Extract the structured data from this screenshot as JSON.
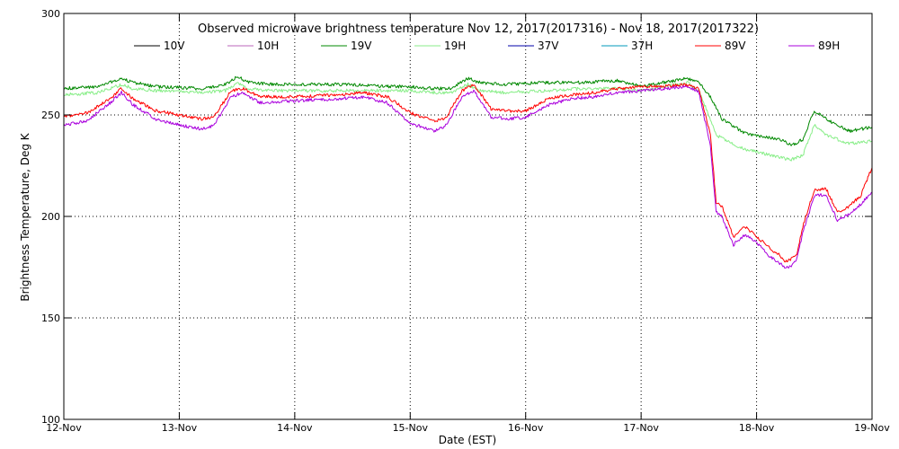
{
  "chart_data": {
    "type": "line",
    "title": "Observed microwave brightness temperature Nov 12, 2017(2017316) - Nov 18, 2017(2017322)",
    "xlabel": "Date (EST)",
    "ylabel": "Brightness Temperature, Deg K",
    "xlim": [
      0,
      7
    ],
    "ylim": [
      100,
      300
    ],
    "x_ticks": [
      0,
      1,
      2,
      3,
      4,
      5,
      6,
      7
    ],
    "x_tick_labels": [
      "12-Nov",
      "13-Nov",
      "14-Nov",
      "15-Nov",
      "16-Nov",
      "17-Nov",
      "18-Nov",
      "19-Nov"
    ],
    "y_ticks": [
      100,
      150,
      200,
      250,
      300
    ],
    "y_tick_labels": [
      "100",
      "150",
      "200",
      "250",
      "300"
    ],
    "grid": true,
    "legend_position": "top",
    "series": [
      {
        "name": "10V",
        "color": "#000000",
        "x": [],
        "values": []
      },
      {
        "name": "10H",
        "color": "#bb66bb",
        "x": [],
        "values": []
      },
      {
        "name": "19V",
        "color": "#008800",
        "x": [
          0,
          0.3,
          0.45,
          0.5,
          0.6,
          0.8,
          1.2,
          1.4,
          1.5,
          1.6,
          1.8,
          2.5,
          2.8,
          3.0,
          3.2,
          3.35,
          3.5,
          3.6,
          3.8,
          4.2,
          4.5,
          4.8,
          5.0,
          5.2,
          5.4,
          5.5,
          5.6,
          5.7,
          5.9,
          6.0,
          6.2,
          6.3,
          6.4,
          6.5,
          6.6,
          6.8,
          7.0
        ],
        "values": [
          263,
          264,
          267,
          268,
          266,
          264,
          263,
          265,
          269,
          266,
          265,
          265,
          264,
          264,
          263,
          263,
          268,
          266,
          265,
          266,
          266,
          267,
          264,
          266,
          268,
          266,
          259,
          248,
          241,
          240,
          238,
          235,
          238,
          252,
          248,
          242,
          244
        ]
      },
      {
        "name": "19H",
        "color": "#88ee88",
        "x": [
          0,
          0.3,
          0.45,
          0.5,
          0.6,
          0.8,
          1.2,
          1.4,
          1.5,
          1.6,
          1.8,
          2.5,
          2.8,
          3.0,
          3.2,
          3.35,
          3.5,
          3.6,
          3.8,
          4.2,
          4.5,
          4.8,
          5.0,
          5.2,
          5.4,
          5.5,
          5.55,
          5.65,
          5.9,
          6.0,
          6.2,
          6.3,
          6.4,
          6.5,
          6.6,
          6.8,
          7.0
        ],
        "values": [
          260,
          261,
          264,
          265,
          263,
          262,
          261,
          262,
          266,
          263,
          262,
          262,
          262,
          262,
          261,
          261,
          265,
          262,
          261,
          262,
          263,
          263,
          262,
          264,
          266,
          262,
          255,
          240,
          233,
          232,
          229,
          228,
          230,
          245,
          240,
          236,
          237
        ]
      },
      {
        "name": "37V",
        "color": "#0000aa",
        "x": [],
        "values": []
      },
      {
        "name": "37H",
        "color": "#0099bb",
        "x": [],
        "values": []
      },
      {
        "name": "89V",
        "color": "#ff0000",
        "x": [
          0,
          0.2,
          0.4,
          0.5,
          0.6,
          0.8,
          1.0,
          1.2,
          1.3,
          1.45,
          1.55,
          1.7,
          2.0,
          2.4,
          2.6,
          2.8,
          3.0,
          3.2,
          3.3,
          3.45,
          3.55,
          3.7,
          3.85,
          4.0,
          4.2,
          4.4,
          4.6,
          4.8,
          5.0,
          5.2,
          5.4,
          5.5,
          5.6,
          5.65,
          5.7,
          5.8,
          5.9,
          6.0,
          6.1,
          6.2,
          6.25,
          6.3,
          6.35,
          6.4,
          6.5,
          6.6,
          6.7,
          6.8,
          6.9,
          7.0
        ],
        "values": [
          249,
          251,
          258,
          263,
          258,
          252,
          250,
          248,
          249,
          262,
          263,
          259,
          259,
          260,
          261,
          259,
          251,
          247,
          248,
          262,
          265,
          253,
          252,
          252,
          258,
          260,
          261,
          263,
          264,
          264,
          265,
          263,
          240,
          207,
          205,
          190,
          195,
          190,
          185,
          181,
          178,
          179,
          182,
          195,
          213,
          214,
          202,
          205,
          210,
          224
        ]
      },
      {
        "name": "89H",
        "color": "#aa00dd",
        "x": [
          0,
          0.2,
          0.4,
          0.5,
          0.6,
          0.8,
          1.0,
          1.2,
          1.3,
          1.45,
          1.55,
          1.7,
          2.0,
          2.4,
          2.6,
          2.8,
          3.0,
          3.2,
          3.3,
          3.45,
          3.55,
          3.7,
          3.85,
          4.0,
          4.2,
          4.4,
          4.6,
          4.8,
          5.0,
          5.2,
          5.4,
          5.5,
          5.6,
          5.65,
          5.7,
          5.8,
          5.9,
          6.0,
          6.1,
          6.2,
          6.25,
          6.3,
          6.35,
          6.4,
          6.5,
          6.6,
          6.7,
          6.8,
          6.9,
          7.0
        ],
        "values": [
          245,
          247,
          256,
          261,
          255,
          248,
          245,
          243,
          245,
          259,
          261,
          256,
          257,
          258,
          259,
          256,
          246,
          242,
          244,
          259,
          262,
          249,
          248,
          249,
          255,
          258,
          259,
          261,
          262,
          263,
          264,
          261,
          235,
          202,
          200,
          186,
          191,
          187,
          181,
          177,
          175,
          175,
          179,
          192,
          210,
          211,
          198,
          201,
          206,
          212
        ]
      }
    ]
  }
}
